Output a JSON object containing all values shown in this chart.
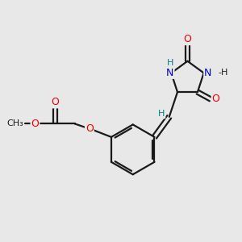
{
  "background_color": "#e8e8e8",
  "bond_color": "#1a1a1a",
  "oxygen_color": "#ee0000",
  "nitrogen_color": "#0000cc",
  "hydrogen_color": "#008080",
  "bond_width": 1.6,
  "figsize": [
    3.0,
    3.0
  ],
  "dpi": 100,
  "xlim": [
    0,
    10
  ],
  "ylim": [
    0,
    10
  ]
}
